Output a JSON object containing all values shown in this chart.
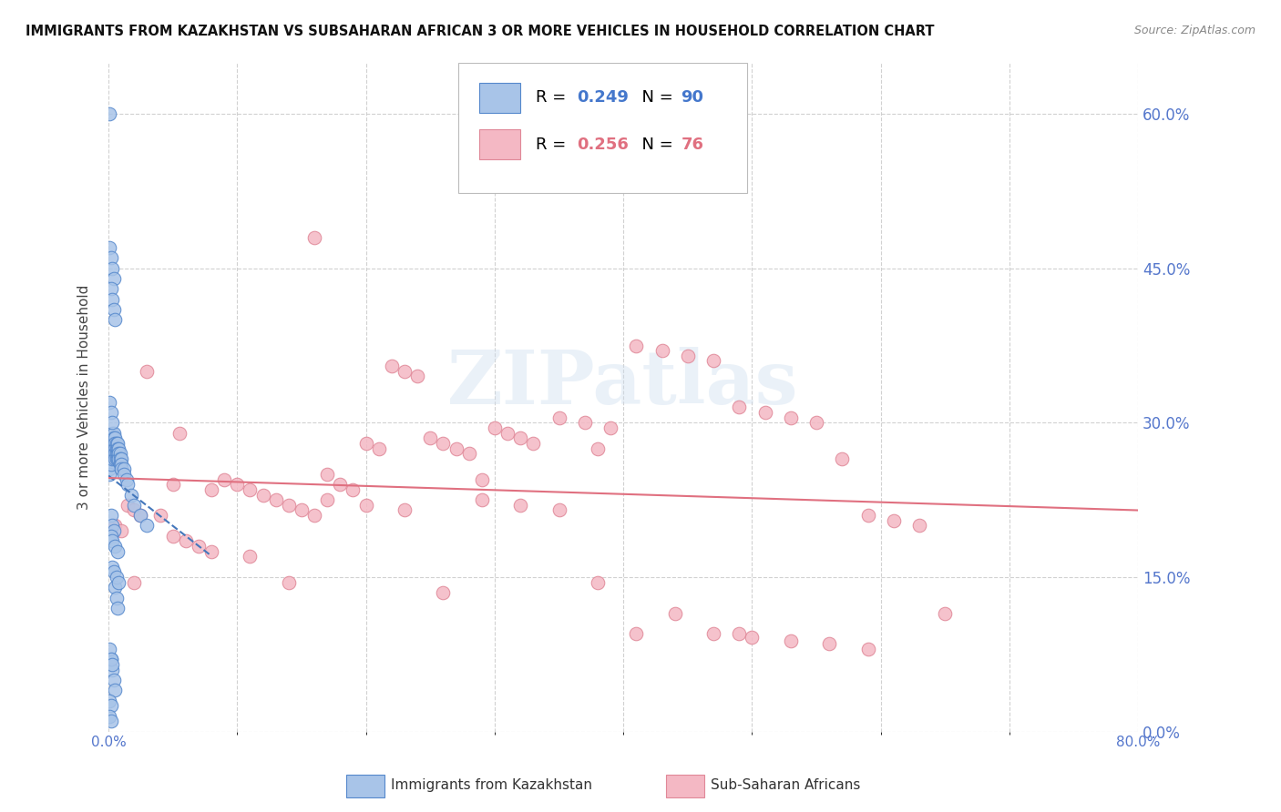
{
  "title": "IMMIGRANTS FROM KAZAKHSTAN VS SUBSAHARAN AFRICAN 3 OR MORE VEHICLES IN HOUSEHOLD CORRELATION CHART",
  "source": "Source: ZipAtlas.com",
  "ylabel": "3 or more Vehicles in Household",
  "xmin": 0.0,
  "xmax": 0.8,
  "ymin": 0.0,
  "ymax": 0.65,
  "yticks": [
    0.0,
    0.15,
    0.3,
    0.45,
    0.6
  ],
  "xticks_shown": [
    0.0,
    0.8
  ],
  "xtick_labels": [
    "0.0%",
    "80.0%"
  ],
  "ytick_labels_right": [
    "0.0%",
    "15.0%",
    "30.0%",
    "45.0%",
    "60.0%"
  ],
  "blue_color": "#a8c4e8",
  "blue_edge_color": "#5588cc",
  "pink_color": "#f4b8c4",
  "pink_edge_color": "#e08898",
  "blue_line_color": "#4477bb",
  "pink_line_color": "#e07080",
  "watermark": "ZIPatlas",
  "blue_scatter_x": [
    0.001,
    0.001,
    0.001,
    0.001,
    0.001,
    0.002,
    0.002,
    0.002,
    0.002,
    0.002,
    0.002,
    0.003,
    0.003,
    0.003,
    0.003,
    0.003,
    0.003,
    0.004,
    0.004,
    0.004,
    0.004,
    0.004,
    0.005,
    0.005,
    0.005,
    0.005,
    0.005,
    0.006,
    0.006,
    0.006,
    0.006,
    0.007,
    0.007,
    0.007,
    0.007,
    0.008,
    0.008,
    0.008,
    0.009,
    0.009,
    0.009,
    0.01,
    0.01,
    0.01,
    0.012,
    0.012,
    0.014,
    0.015,
    0.018,
    0.02,
    0.025,
    0.03,
    0.001,
    0.002,
    0.003,
    0.004,
    0.002,
    0.003,
    0.004,
    0.005,
    0.001,
    0.002,
    0.003,
    0.005,
    0.006,
    0.007,
    0.002,
    0.003,
    0.004,
    0.005,
    0.001,
    0.002,
    0.001,
    0.002,
    0.003,
    0.004,
    0.006,
    0.008,
    0.001,
    0.002,
    0.003,
    0.004,
    0.002,
    0.003,
    0.005,
    0.007,
    0.001,
    0.002,
    0.003
  ],
  "blue_scatter_y": [
    0.27,
    0.265,
    0.26,
    0.255,
    0.25,
    0.285,
    0.28,
    0.275,
    0.27,
    0.265,
    0.26,
    0.29,
    0.285,
    0.28,
    0.275,
    0.27,
    0.265,
    0.29,
    0.285,
    0.28,
    0.275,
    0.27,
    0.285,
    0.28,
    0.275,
    0.27,
    0.265,
    0.28,
    0.275,
    0.27,
    0.265,
    0.28,
    0.275,
    0.27,
    0.265,
    0.275,
    0.27,
    0.265,
    0.27,
    0.265,
    0.26,
    0.265,
    0.26,
    0.255,
    0.255,
    0.25,
    0.245,
    0.24,
    0.23,
    0.22,
    0.21,
    0.2,
    0.47,
    0.46,
    0.45,
    0.44,
    0.43,
    0.42,
    0.41,
    0.4,
    0.32,
    0.31,
    0.3,
    0.14,
    0.13,
    0.12,
    0.07,
    0.06,
    0.05,
    0.04,
    0.03,
    0.025,
    0.015,
    0.01,
    0.16,
    0.155,
    0.15,
    0.145,
    0.6,
    0.21,
    0.2,
    0.195,
    0.19,
    0.185,
    0.18,
    0.175,
    0.08,
    0.07,
    0.065
  ],
  "pink_scatter_x": [
    0.005,
    0.01,
    0.015,
    0.02,
    0.025,
    0.03,
    0.04,
    0.05,
    0.06,
    0.07,
    0.08,
    0.09,
    0.1,
    0.11,
    0.12,
    0.13,
    0.14,
    0.15,
    0.16,
    0.17,
    0.18,
    0.19,
    0.2,
    0.21,
    0.22,
    0.23,
    0.24,
    0.25,
    0.26,
    0.27,
    0.28,
    0.29,
    0.3,
    0.31,
    0.32,
    0.33,
    0.35,
    0.37,
    0.39,
    0.41,
    0.43,
    0.45,
    0.47,
    0.49,
    0.51,
    0.53,
    0.55,
    0.57,
    0.59,
    0.61,
    0.63,
    0.65,
    0.02,
    0.05,
    0.08,
    0.11,
    0.14,
    0.17,
    0.2,
    0.23,
    0.26,
    0.29,
    0.32,
    0.35,
    0.38,
    0.41,
    0.44,
    0.47,
    0.5,
    0.53,
    0.56,
    0.59,
    0.055,
    0.16,
    0.38,
    0.49
  ],
  "pink_scatter_y": [
    0.2,
    0.195,
    0.22,
    0.215,
    0.21,
    0.35,
    0.21,
    0.19,
    0.185,
    0.18,
    0.175,
    0.245,
    0.24,
    0.235,
    0.23,
    0.225,
    0.22,
    0.215,
    0.21,
    0.25,
    0.24,
    0.235,
    0.28,
    0.275,
    0.355,
    0.35,
    0.345,
    0.285,
    0.28,
    0.275,
    0.27,
    0.245,
    0.295,
    0.29,
    0.285,
    0.28,
    0.305,
    0.3,
    0.295,
    0.375,
    0.37,
    0.365,
    0.36,
    0.315,
    0.31,
    0.305,
    0.3,
    0.265,
    0.21,
    0.205,
    0.2,
    0.115,
    0.145,
    0.24,
    0.235,
    0.17,
    0.145,
    0.225,
    0.22,
    0.215,
    0.135,
    0.225,
    0.22,
    0.215,
    0.145,
    0.095,
    0.115,
    0.095,
    0.092,
    0.088,
    0.085,
    0.08,
    0.29,
    0.48,
    0.275,
    0.095
  ]
}
